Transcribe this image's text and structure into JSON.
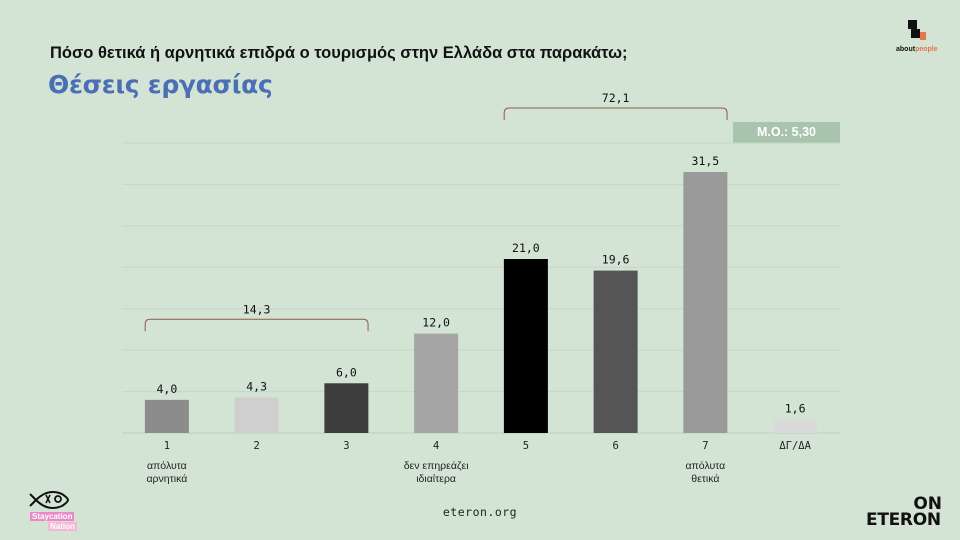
{
  "header": {
    "question": "Πόσο θετικά ή αρνητικά επιδρά ο τουρισμός στην Ελλάδα στα παρακάτω;",
    "subtitle": "Θέσεις εργασίας"
  },
  "mean_badge": "Μ.Ο.: 5,30",
  "brand": {
    "about_people_a": "about",
    "about_people_b": "people",
    "on_line": "ON",
    "eteron_line": "ETERON",
    "stay_l1": "Staycation",
    "stay_l2": "Nation"
  },
  "footer": {
    "url": "eteron.org"
  },
  "chart_data": {
    "type": "bar",
    "categories": [
      "1",
      "2",
      "3",
      "4",
      "5",
      "6",
      "7",
      "ΔΓ/ΔΑ"
    ],
    "values": [
      4.0,
      4.3,
      6.0,
      12.0,
      21.0,
      19.6,
      31.5,
      1.6
    ],
    "value_labels": [
      "4,0",
      "4,3",
      "6,0",
      "12,0",
      "21,0",
      "19,6",
      "31,5",
      "1,6"
    ],
    "category_sublabels": [
      [
        "απόλυτα",
        "αρνητικά"
      ],
      [],
      [],
      [
        "δεν επηρεάζει",
        "ιδιαίτερα"
      ],
      [],
      [],
      [
        "απόλυτα",
        "θετικά"
      ],
      []
    ],
    "bar_colors": [
      "#8c8c8c",
      "#cfcfcf",
      "#3e3e3e",
      "#a5a5a5",
      "#000000",
      "#555555",
      "#9a9a9a",
      "#dadada"
    ],
    "groups": [
      {
        "from": 0,
        "to": 2,
        "label": "14,3"
      },
      {
        "from": 4,
        "to": 6,
        "label": "72,1"
      }
    ],
    "ylim": [
      0,
      35
    ],
    "grid": true
  },
  "colors": {
    "background": "#d4e4d4",
    "subtitle": "#4a6fb5",
    "badge": "#a8c4ad",
    "bracket": "#8b5a4a"
  }
}
